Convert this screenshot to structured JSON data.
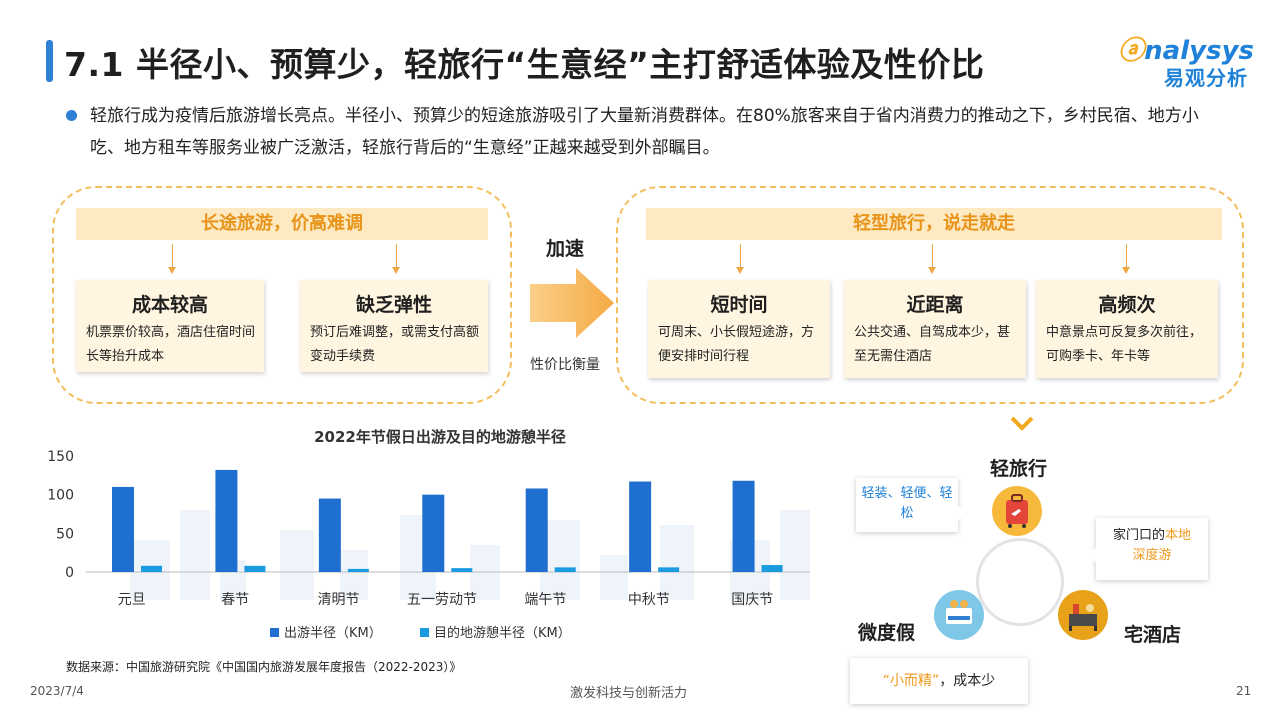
{
  "header": {
    "title": "7.1 半径小、预算少，轻旅行“生意经”主打舒适体验及性价比",
    "logo_en": "nalysys",
    "logo_cn": "易观分析"
  },
  "intro": "轻旅行成为疫情后旅游增长亮点。半径小、预算少的短途旅游吸引了大量新消费群体。在80%旅客来自于省内消费力的推动之下，乡村民宿、地方小吃、地方租车等服务业被广泛激活，轻旅行背后的“生意经”正越来越受到外部瞩目。",
  "left_panel": {
    "heading": "长途旅游，价高难调",
    "cards": [
      {
        "title": "成本较高",
        "desc": "机票票价较高，酒店住宿时间长等抬升成本"
      },
      {
        "title": "缺乏弹性",
        "desc": "预订后难调整，或需支付高额变动手续费"
      }
    ]
  },
  "middle": {
    "accelerate": "加速",
    "value_measure": "性价比衡量"
  },
  "right_panel": {
    "heading": "轻型旅行，说走就走",
    "cards": [
      {
        "title": "短时间",
        "desc": "可周末、小长假短途游，方便安排时间行程"
      },
      {
        "title": "近距离",
        "desc": "公共交通、自驾成本少，甚至无需住酒店"
      },
      {
        "title": "高频次",
        "desc": "中意景点可反复多次前往，可购季卡、年卡等"
      }
    ]
  },
  "chart_data": {
    "type": "bar",
    "title": "2022年节假日出游及目的地游憩半径",
    "categories": [
      "元旦",
      "春节",
      "清明节",
      "五一劳动节",
      "端午节",
      "中秋节",
      "国庆节"
    ],
    "series": [
      {
        "name": "出游半径（KM）",
        "color": "#1f6fd1",
        "values": [
          110,
          132,
          95,
          100,
          108,
          117,
          118
        ]
      },
      {
        "name": "目的地游憩半径（KM）",
        "color": "#1a9be0",
        "values": [
          8,
          8,
          4,
          5,
          6,
          6,
          9
        ]
      }
    ],
    "ylim": [
      0,
      150
    ],
    "yticks": [
      0,
      50,
      100,
      150
    ],
    "legend": "bottom",
    "grid": false
  },
  "source": "数据来源：中国旅游研究院《中国国内旅游发展年度报告（2022-2023）》",
  "diagram": {
    "center_label": "轻旅行",
    "left_label": "微度假",
    "right_label": "宅酒店",
    "bubble_top_left": "轻装、轻便、轻松",
    "bubble_right_prefix": "家门口的",
    "bubble_right_highlight1": "本地",
    "bubble_right_highlight2": "深度游",
    "bubble_bottom_highlight": "“小而精”",
    "bubble_bottom_suffix": "，成本少"
  },
  "footer": {
    "date": "2023/7/4",
    "slogan": "激发科技与创新活力",
    "page": "21"
  },
  "colors": {
    "accent_blue": "#2f7fd4",
    "orange": "#f09a1e",
    "panel_fill": "#fde9c2"
  }
}
